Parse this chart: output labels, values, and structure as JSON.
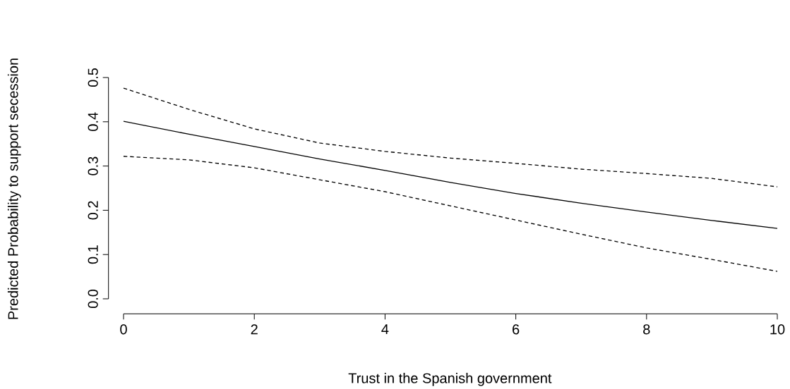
{
  "chart_data": {
    "type": "line",
    "xlabel": "Trust in the Spanish government",
    "ylabel": "Predicted Probability to support secession",
    "x": [
      0,
      1,
      2,
      3,
      4,
      5,
      6,
      7,
      8,
      9,
      10
    ],
    "series": [
      {
        "color": "#000000",
        "line_style": "solid",
        "values": [
          0.401,
          0.372,
          0.344,
          0.316,
          0.29,
          0.263,
          0.238,
          0.216,
          0.196,
          0.177,
          0.159
        ]
      },
      {
        "color": "#000000",
        "line_style": "dashed",
        "values": [
          0.476,
          0.428,
          0.384,
          0.352,
          0.333,
          0.318,
          0.306,
          0.293,
          0.283,
          0.272,
          0.253
        ]
      },
      {
        "color": "#000000",
        "line_style": "dashed",
        "values": [
          0.322,
          0.314,
          0.296,
          0.269,
          0.242,
          0.21,
          0.178,
          0.146,
          0.115,
          0.089,
          0.062
        ]
      }
    ],
    "xlim": [
      0,
      10
    ],
    "ylim": [
      0,
      0.5
    ],
    "xticks": [
      0,
      2,
      4,
      6,
      8,
      10
    ],
    "yticks": [
      {
        "value": 0,
        "label": "0.0"
      },
      0.1,
      0.2,
      0.3,
      0.4,
      0.5
    ],
    "grid": false,
    "marker": "none"
  }
}
